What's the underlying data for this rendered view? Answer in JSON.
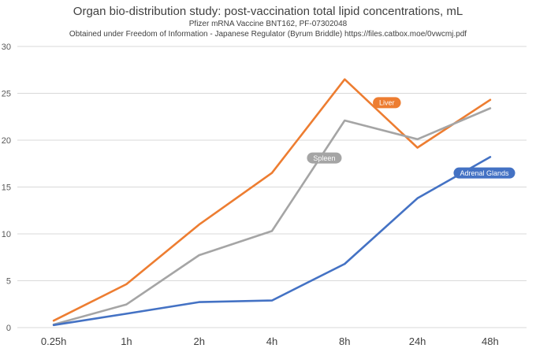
{
  "colors": {
    "liver": "#ed7d31",
    "spleen": "#a5a5a5",
    "adrenal": "#4472c4",
    "grid": "#d9d9d9",
    "text": "#404040"
  },
  "chart_data": {
    "type": "line",
    "title": "Organ bio-distribution study: post-vaccination total lipid concentrations, mL",
    "subtitle1": "Pfizer mRNA Vaccine BNT162, PF-07302048",
    "subtitle2": "Obtained under Freedom of Information - Japanese Regulator (Byrum Briddle) https://files.catbox.moe/0vwcmj.pdf",
    "categories": [
      "0.25h",
      "1h",
      "2h",
      "4h",
      "8h",
      "24h",
      "48h"
    ],
    "ylim": [
      0,
      30
    ],
    "yticks": [
      0,
      5,
      10,
      15,
      20,
      25,
      30
    ],
    "grid": true,
    "legend": "inline labels",
    "series": [
      {
        "name": "Liver",
        "color": "#ed7d31",
        "values": [
          0.74,
          4.63,
          11.0,
          16.5,
          26.5,
          19.2,
          24.3
        ]
      },
      {
        "name": "Spleen",
        "color": "#a5a5a5",
        "values": [
          0.33,
          2.47,
          7.73,
          10.3,
          22.1,
          20.1,
          23.4
        ]
      },
      {
        "name": "Adrenal Glands",
        "color": "#4472c4",
        "values": [
          0.27,
          1.48,
          2.72,
          2.89,
          6.8,
          13.8,
          18.2
        ]
      }
    ]
  }
}
